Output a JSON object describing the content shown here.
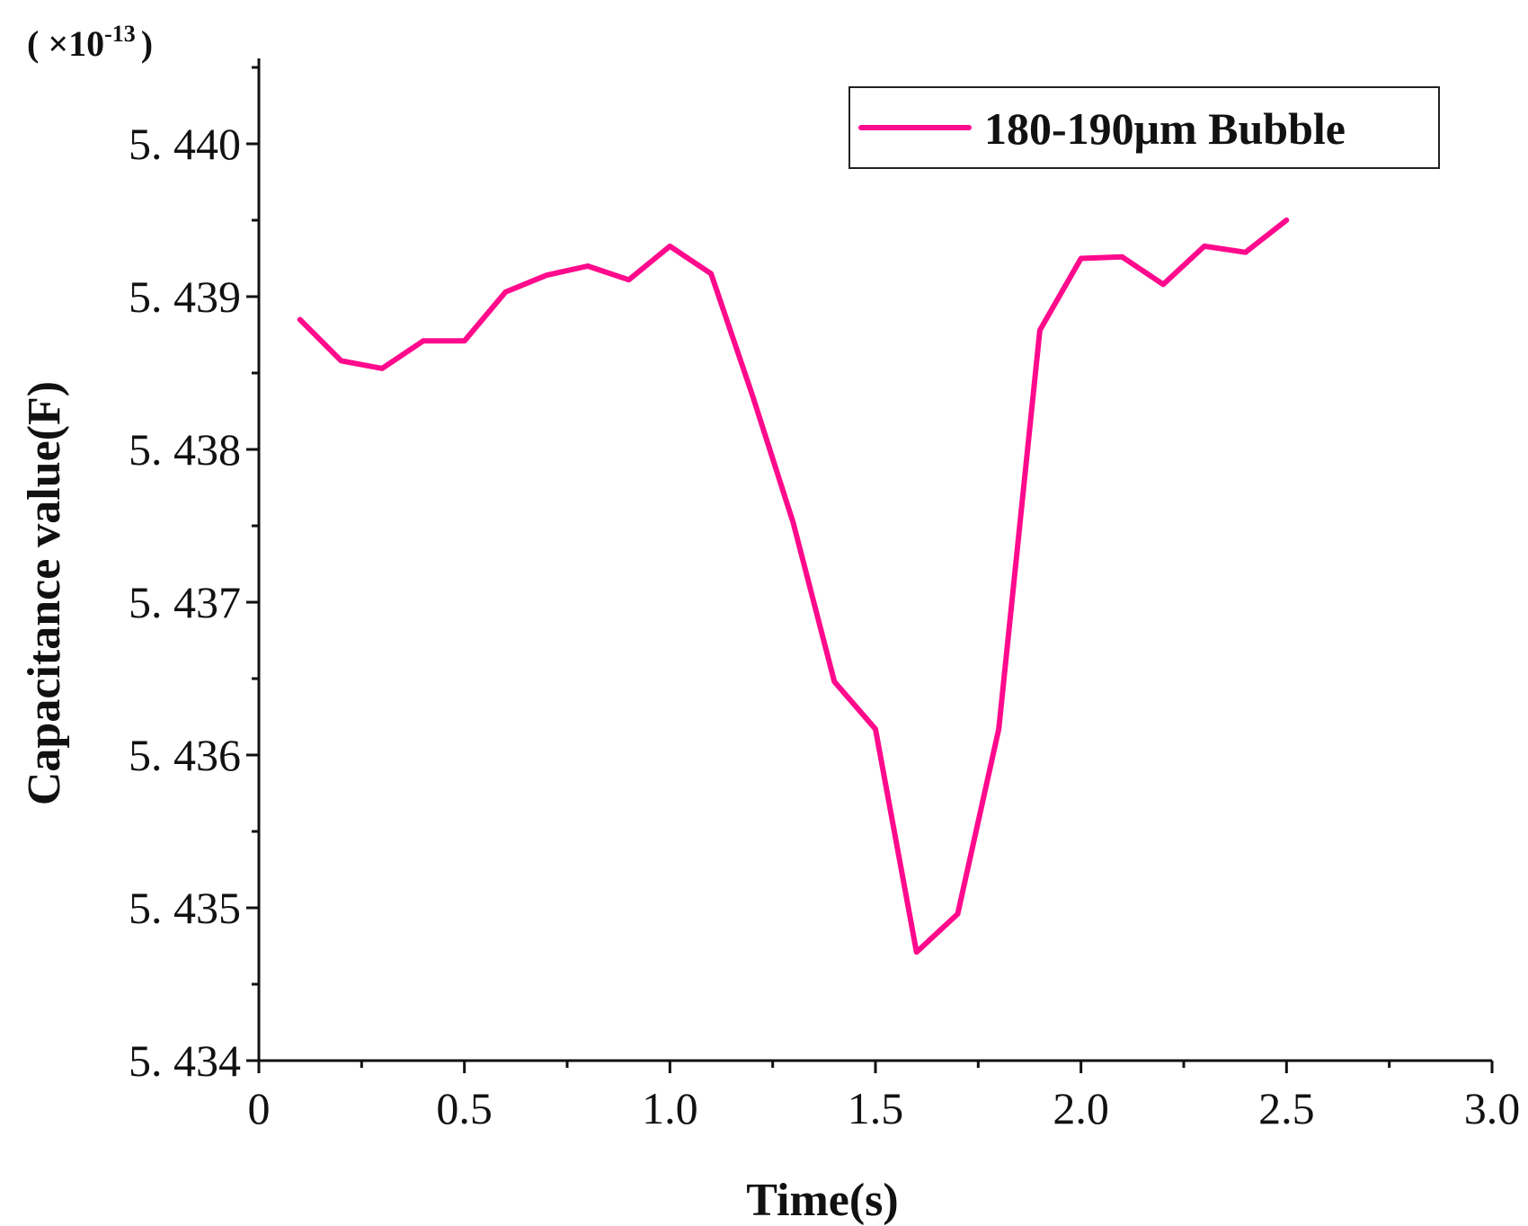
{
  "chart_data": {
    "type": "line",
    "xlabel": "Time(s)",
    "ylabel": "Capacitance value(F)",
    "y_multiplier_prefix": "( ×10",
    "y_multiplier_exponent": "-13",
    "y_multiplier_suffix": ")",
    "xlim": [
      0,
      3.0
    ],
    "ylim": [
      5.434,
      5.4405
    ],
    "x_ticks": [
      0,
      0.5,
      1.0,
      1.5,
      2.0,
      2.5,
      3.0
    ],
    "x_tick_labels": [
      "0",
      "0.5",
      "1.0",
      "1.5",
      "2.0",
      "2.5",
      "3.0"
    ],
    "y_ticks": [
      5.434,
      5.435,
      5.436,
      5.437,
      5.438,
      5.439,
      5.44
    ],
    "y_tick_labels": [
      "5. 434",
      "5. 435",
      "5. 436",
      "5. 437",
      "5. 438",
      "5. 439",
      "5. 440"
    ],
    "legend_position": "top-right",
    "series": [
      {
        "name": "180-190μm Bubble",
        "color": "#ff0a8c",
        "x": [
          0.1,
          0.2,
          0.3,
          0.4,
          0.5,
          0.6,
          0.7,
          0.8,
          0.9,
          1.0,
          1.1,
          1.2,
          1.3,
          1.4,
          1.5,
          1.6,
          1.7,
          1.8,
          1.9,
          2.0,
          2.1,
          2.2,
          2.3,
          2.4,
          2.5
        ],
        "y": [
          5.43885,
          5.43858,
          5.43853,
          5.43871,
          5.43871,
          5.43903,
          5.43914,
          5.4392,
          5.43911,
          5.43933,
          5.43915,
          5.43836,
          5.43752,
          5.43648,
          5.43617,
          5.43471,
          5.43496,
          5.43617,
          5.43878,
          5.43925,
          5.43926,
          5.43908,
          5.43933,
          5.43929,
          5.4395
        ]
      }
    ]
  }
}
